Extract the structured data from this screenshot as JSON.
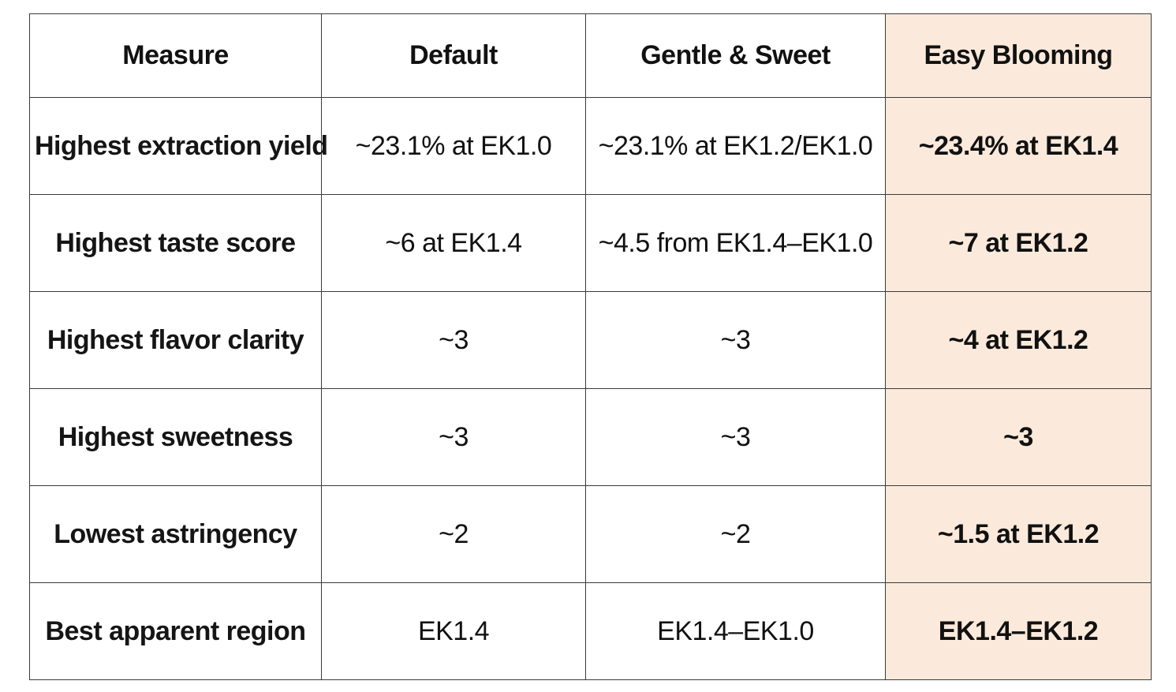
{
  "table": {
    "headers": [
      "Measure",
      "Default",
      "Gentle & Sweet",
      "Easy Blooming"
    ],
    "highlight_color": "#fbeadb",
    "highlighted_column": "Easy Blooming",
    "rows": [
      [
        "Highest extraction yield",
        "~23.1% at EK1.0",
        "~23.1% at EK1.2/EK1.0",
        "~23.4% at EK1.4"
      ],
      [
        "Highest taste score",
        "~6 at EK1.4",
        "~4.5 from EK1.4–EK1.0",
        "~7 at EK1.2"
      ],
      [
        "Highest flavor clarity",
        "~3",
        "~3",
        "~4 at EK1.2"
      ],
      [
        "Highest sweetness",
        "~3",
        "~3",
        "~3"
      ],
      [
        "Lowest astringency",
        "~2",
        "~2",
        "~1.5 at EK1.2"
      ],
      [
        "Best apparent region",
        "EK1.4",
        "EK1.4–EK1.0",
        "EK1.4–EK1.2"
      ]
    ]
  }
}
